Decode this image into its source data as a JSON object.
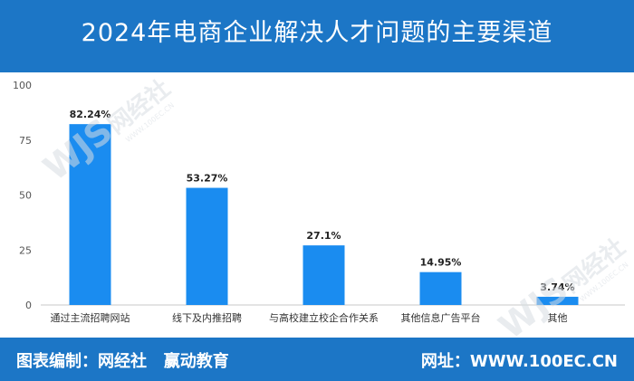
{
  "header": {
    "title": "2024年电商企业解决人才问题的主要渠道"
  },
  "chart_data": {
    "type": "bar",
    "title": "2024年电商企业解决人才问题的主要渠道",
    "categories": [
      "通过主流招聘网站",
      "线下及内推招聘",
      "与高校建立校企合作关系",
      "其他信息广告平台",
      "其他"
    ],
    "values": [
      82.24,
      53.27,
      27.1,
      14.95,
      3.74
    ],
    "data_labels": [
      "82.24%",
      "53.27%",
      "27.1%",
      "14.95%",
      "3.74%"
    ],
    "yticks": [
      0,
      25,
      50,
      75,
      100
    ],
    "ylim": [
      0,
      100
    ],
    "grid": false,
    "bar_color": "#1a8cf0"
  },
  "footer": {
    "left": "图表编制：网经社   赢动教育",
    "right": "网址：WWW.100EC.CN"
  },
  "watermark": {
    "logo_text": "WJS网经社",
    "url_text": "WWW.100EC.CN"
  },
  "colors": {
    "header_bg": "#1c76c6",
    "bar": "#1a8cf0",
    "axis": "#cccccc",
    "text": "#333333"
  }
}
